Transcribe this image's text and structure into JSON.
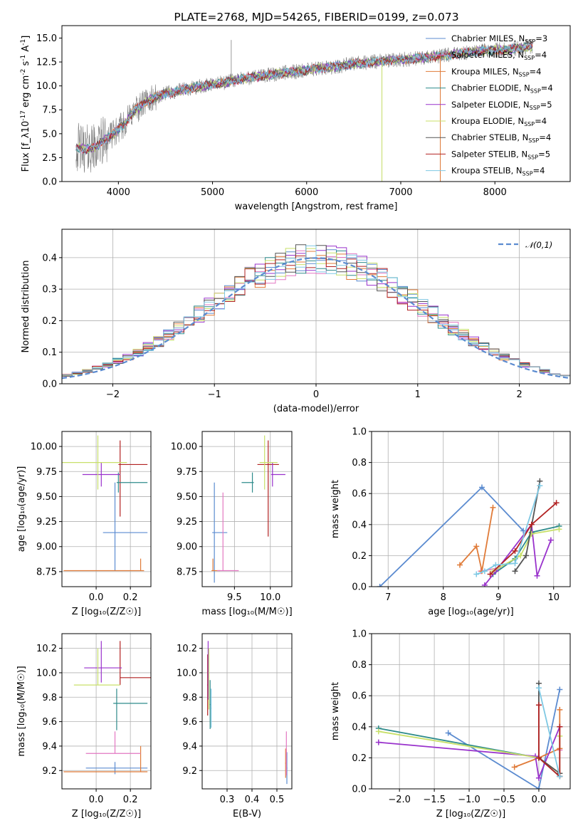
{
  "title": "PLATE=2768, MJD=54265, FIBERID=0199, z=0.073",
  "chart_data": [
    {
      "id": "spectrum",
      "type": "line",
      "title": "PLATE=2768, MJD=54265, FIBERID=0199, z=0.073",
      "xlabel": "wavelength [Angstrom, rest frame]",
      "ylabel": "Flux [f_λ10^{-17} erg cm^{-2} s^{-1} A^{-1}]",
      "xlim": [
        3400,
        8800
      ],
      "ylim": [
        0,
        16.3
      ],
      "xticks": [
        4000,
        5000,
        6000,
        7000,
        8000
      ],
      "yticks": [
        0.0,
        2.5,
        5.0,
        7.5,
        10.0,
        12.5,
        15.0
      ],
      "ytick_labels": [
        "0.0",
        "2.5",
        "5.0",
        "7.5",
        "10.0",
        "12.5",
        "15.0"
      ],
      "grid": false,
      "legend_position": "right",
      "data_color": "#808080",
      "continuum": {
        "x": [
          3550,
          3650,
          3750,
          3850,
          3950,
          4050,
          4150,
          4300,
          4500,
          4700,
          4900,
          5100,
          5300,
          5500,
          5700,
          5900,
          6100,
          6300,
          6500,
          6700,
          6900,
          7100,
          7300,
          7500,
          7700,
          7900,
          8100,
          8300,
          8400
        ],
        "y": [
          3.6,
          3.4,
          3.5,
          4.4,
          5.0,
          5.9,
          7.2,
          8.4,
          9.2,
          9.6,
          10.0,
          10.3,
          10.7,
          11.0,
          11.3,
          11.5,
          11.8,
          12.0,
          12.3,
          12.5,
          12.7,
          12.8,
          13.0,
          13.2,
          13.5,
          13.7,
          13.8,
          14.0,
          14.1
        ]
      },
      "spikes": [
        {
          "x": 5199,
          "y": 14.8
        },
        {
          "x": 6800,
          "y": 0.0
        },
        {
          "x": 7420,
          "y": 0.0
        }
      ]
    },
    {
      "id": "residuals",
      "type": "histogram",
      "xlabel": "(data-model)/error",
      "ylabel": "Normed distribution",
      "xlim": [
        -2.5,
        2.5
      ],
      "ylim": [
        0,
        0.49
      ],
      "xticks": [
        -2,
        -1,
        0,
        1,
        2
      ],
      "xtick_labels": [
        "−2",
        "−1",
        "0",
        "1",
        "2"
      ],
      "yticks": [
        0.0,
        0.1,
        0.2,
        0.3,
        0.4
      ],
      "ytick_labels": [
        "0.0",
        "0.1",
        "0.2",
        "0.3",
        "0.4"
      ],
      "grid": true,
      "bin_width": 0.1,
      "legend_position": "top-right",
      "reference_curve": {
        "label": "𝒩(0,1)",
        "mean": 0,
        "sigma": 1,
        "color": "#5b8bd0"
      }
    },
    {
      "id": "age_vs_Z",
      "type": "errorbar",
      "xlabel": "Z [log₁₀(Z/Z☉)]",
      "ylabel": "age  [log₁₀(age/yr)]",
      "xlim": [
        -0.2,
        0.32
      ],
      "ylim": [
        8.6,
        10.15
      ],
      "xticks": [
        0.0,
        0.2
      ],
      "xtick_labels": [
        "0.0",
        "0.2"
      ],
      "yticks": [
        8.75,
        9.0,
        9.25,
        9.5,
        9.75,
        10.0
      ],
      "ytick_labels": [
        "8.75",
        "9.00",
        "9.25",
        "9.50",
        "9.75",
        "10.00"
      ],
      "grid": true,
      "points": [
        {
          "x": 0.11,
          "xerr": [
            0.07,
            0.19
          ],
          "y": 9.14,
          "yerr": [
            0.38,
            0.5
          ],
          "color": "#5b8bd0"
        },
        {
          "x": 0.26,
          "xerr": [
            0.45,
            0.02
          ],
          "y": 8.76,
          "yerr": [
            0.0,
            0.12
          ],
          "color": "#e07b39"
        },
        {
          "x": 0.14,
          "xerr": [
            0.01,
            0.16
          ],
          "y": 9.82,
          "yerr": [
            0.52,
            0.24
          ],
          "color": "#b22222"
        },
        {
          "x": 0.13,
          "xerr": [
            0.01,
            0.17
          ],
          "y": 9.64,
          "yerr": [
            0.1,
            0.1
          ],
          "color": "#2e8b8b"
        },
        {
          "x": 0.03,
          "xerr": [
            0.11,
            0.11
          ],
          "y": 9.72,
          "yerr": [
            0.12,
            0.12
          ],
          "color": "#9932cc"
        },
        {
          "x": 0.01,
          "xerr": [
            0.25,
            0.17
          ],
          "y": 9.84,
          "yerr": [
            0.27,
            0.27
          ],
          "color": "#c8e06a"
        }
      ]
    },
    {
      "id": "age_vs_mass",
      "type": "errorbar",
      "xlabel": "mass [log₁₀(M/M☉)]",
      "ylabel": "",
      "xlim": [
        9.05,
        10.3
      ],
      "ylim": [
        8.6,
        10.15
      ],
      "xticks": [
        9.5,
        10.0
      ],
      "xtick_labels": [
        "9.5",
        "10.0"
      ],
      "yticks": [
        8.75,
        9.0,
        9.25,
        9.5,
        9.75,
        10.0
      ],
      "ytick_labels": [
        "8.75",
        "9.00",
        "9.25",
        "9.50",
        "9.75",
        "10.00"
      ],
      "grid": true,
      "points": [
        {
          "x": 9.22,
          "xerr": [
            0.03,
            0.18
          ],
          "y": 9.14,
          "yerr": [
            0.5,
            0.5
          ],
          "color": "#5b8bd0"
        },
        {
          "x": 9.2,
          "xerr": [
            0.02,
            0.1
          ],
          "y": 8.76,
          "yerr": [
            0.0,
            0.12
          ],
          "color": "#e07b39"
        },
        {
          "x": 9.34,
          "xerr": [
            0.08,
            0.22
          ],
          "y": 8.76,
          "yerr": [
            0.0,
            0.78
          ],
          "color": "#e377c2"
        },
        {
          "x": 9.97,
          "xerr": [
            0.15,
            0.15
          ],
          "y": 9.82,
          "yerr": [
            0.72,
            0.24
          ],
          "color": "#b22222"
        },
        {
          "x": 9.75,
          "xerr": [
            0.15,
            0.02
          ],
          "y": 9.64,
          "yerr": [
            0.1,
            0.1
          ],
          "color": "#2e8b8b"
        },
        {
          "x": 10.03,
          "xerr": [
            0.02,
            0.18
          ],
          "y": 9.72,
          "yerr": [
            0.12,
            0.12
          ],
          "color": "#9932cc"
        },
        {
          "x": 9.92,
          "xerr": [
            0.07,
            0.18
          ],
          "y": 9.84,
          "yerr": [
            0.27,
            0.27
          ],
          "color": "#c8e06a"
        }
      ]
    },
    {
      "id": "weight_vs_age",
      "type": "line",
      "xlabel": "age  [log₁₀(age/yr)]",
      "ylabel": "mass weight",
      "xlim": [
        6.7,
        10.3
      ],
      "ylim": [
        0,
        1
      ],
      "xticks": [
        7,
        8,
        9,
        10
      ],
      "xtick_labels": [
        "7",
        "8",
        "9",
        "10"
      ],
      "yticks": [
        0.0,
        0.2,
        0.4,
        0.6,
        0.8,
        1.0
      ],
      "ytick_labels": [
        "0.0",
        "0.2",
        "0.4",
        "0.6",
        "0.8",
        "1.0"
      ],
      "grid": true
    },
    {
      "id": "mass_vs_Z",
      "type": "errorbar",
      "xlabel": "Z [log₁₀(Z/Z☉)]",
      "ylabel": "mass [log₁₀(M/M☉)]",
      "xlim": [
        -0.2,
        0.32
      ],
      "ylim": [
        9.05,
        10.32
      ],
      "xticks": [
        0.0,
        0.2
      ],
      "xtick_labels": [
        "0.0",
        "0.2"
      ],
      "yticks": [
        9.2,
        9.4,
        9.6,
        9.8,
        10.0,
        10.2
      ],
      "ytick_labels": [
        "9.2",
        "9.4",
        "9.6",
        "9.8",
        "10.0",
        "10.2"
      ],
      "grid": true,
      "points": [
        {
          "x": 0.11,
          "xerr": [
            0.17,
            0.19
          ],
          "y": 9.22,
          "yerr": [
            0.05,
            0.05
          ],
          "color": "#5b8bd0"
        },
        {
          "x": 0.26,
          "xerr": [
            0.45,
            0.04
          ],
          "y": 9.19,
          "yerr": [
            0.0,
            0.21
          ],
          "color": "#e07b39"
        },
        {
          "x": 0.11,
          "xerr": [
            0.17,
            0.15
          ],
          "y": 9.34,
          "yerr": [
            0.0,
            0.18
          ],
          "color": "#e377c2"
        },
        {
          "x": 0.14,
          "xerr": [
            0.0,
            0.18
          ],
          "y": 9.96,
          "yerr": [
            0.06,
            0.3
          ],
          "color": "#b22222"
        },
        {
          "x": 0.12,
          "xerr": [
            0.02,
            0.18
          ],
          "y": 9.75,
          "yerr": [
            0.22,
            0.12
          ],
          "color": "#2e8b8b"
        },
        {
          "x": 0.03,
          "xerr": [
            0.1,
            0.12
          ],
          "y": 10.04,
          "yerr": [
            0.12,
            0.22
          ],
          "color": "#9932cc"
        },
        {
          "x": 0.01,
          "xerr": [
            0.14,
            0.13
          ],
          "y": 9.9,
          "yerr": [
            0.0,
            0.3
          ],
          "color": "#c8e06a"
        }
      ]
    },
    {
      "id": "mass_vs_EBV",
      "type": "errorbar",
      "xlabel": "E(B-V)",
      "ylabel": "",
      "xlim": [
        0.2,
        0.56
      ],
      "ylim": [
        9.05,
        10.32
      ],
      "xticks": [
        0.3,
        0.4,
        0.5
      ],
      "xtick_labels": [
        "0.3",
        "0.4",
        "0.5"
      ],
      "yticks": [
        9.2,
        9.4,
        9.6,
        9.8,
        10.0,
        10.2
      ],
      "ytick_labels": [
        "9.2",
        "9.4",
        "9.6",
        "9.8",
        "10.0",
        "10.2"
      ],
      "grid": true,
      "points": [
        {
          "x": 0.54,
          "xerr": [
            0.002,
            0.002
          ],
          "y": 9.22,
          "yerr": [
            0.13,
            0.13
          ],
          "color": "#5b8bd0"
        },
        {
          "x": 0.535,
          "xerr": [
            0.002,
            0.002
          ],
          "y": 9.26,
          "yerr": [
            0.12,
            0.12
          ],
          "color": "#e07b39"
        },
        {
          "x": 0.538,
          "xerr": [
            0.002,
            0.002
          ],
          "y": 9.34,
          "yerr": [
            0.18,
            0.18
          ],
          "color": "#e377c2"
        },
        {
          "x": 0.222,
          "xerr": [
            0.002,
            0.002
          ],
          "y": 9.9,
          "yerr": [
            0.25,
            0.25
          ],
          "color": "#b22222"
        },
        {
          "x": 0.232,
          "xerr": [
            0.002,
            0.002
          ],
          "y": 9.74,
          "yerr": [
            0.2,
            0.2
          ],
          "color": "#2e8b8b"
        },
        {
          "x": 0.224,
          "xerr": [
            0.002,
            0.002
          ],
          "y": 10.02,
          "yerr": [
            0.24,
            0.24
          ],
          "color": "#9932cc"
        },
        {
          "x": 0.227,
          "xerr": [
            0.002,
            0.002
          ],
          "y": 9.95,
          "yerr": [
            0.25,
            0.25
          ],
          "color": "#c8e06a"
        },
        {
          "x": 0.236,
          "xerr": [
            0.002,
            0.002
          ],
          "y": 9.71,
          "yerr": [
            0.16,
            0.16
          ],
          "color": "#7ec8e3"
        }
      ]
    },
    {
      "id": "weight_vs_Z",
      "type": "line",
      "xlabel": "Z [log₁₀(Z/Z☉)]",
      "ylabel": "mass weight",
      "xlim": [
        -2.4,
        0.45
      ],
      "ylim": [
        0,
        1
      ],
      "xticks": [
        -2.0,
        -1.5,
        -1.0,
        -0.5,
        0.0
      ],
      "xtick_labels": [
        "−2.0",
        "−1.5",
        "−1.0",
        "−0.5",
        "0.0"
      ],
      "yticks": [
        0.0,
        0.2,
        0.4,
        0.6,
        0.8,
        1.0
      ],
      "ytick_labels": [
        "0.0",
        "0.2",
        "0.4",
        "0.6",
        "0.8",
        "1.0"
      ],
      "grid": true
    }
  ],
  "models": [
    {
      "label": "Chabrier MILES, N_SSP=3",
      "name": "Chabrier MILES",
      "sub": "SSP",
      "n": "=3",
      "color": "#5b8bd0",
      "age_points": [
        [
          6.85,
          0.0
        ],
        [
          8.7,
          0.64
        ],
        [
          9.45,
          0.36
        ]
      ],
      "Z_points": [
        [
          -1.3,
          0.36
        ],
        [
          0.0,
          0.0
        ],
        [
          0.3,
          0.64
        ]
      ],
      "hist_seed": 1
    },
    {
      "label": "Salpeter MILES, N_SSP=4",
      "name": "Salpeter MILES",
      "sub": "SSP",
      "n": "=4",
      "color": "#e377c2",
      "age_points": [
        [
          8.68,
          0.1
        ],
        [
          9.0,
          0.12
        ]
      ],
      "Z_points": [
        [
          0.3,
          0.1
        ],
        [
          0.3,
          0.25
        ]
      ],
      "hist_seed": 2
    },
    {
      "label": "Kroupa MILES, N_SSP=4",
      "name": "Kroupa MILES",
      "sub": "SSP",
      "n": "=4",
      "color": "#e07b39",
      "age_points": [
        [
          8.3,
          0.14
        ],
        [
          8.6,
          0.26
        ],
        [
          8.7,
          0.1
        ],
        [
          8.9,
          0.51
        ]
      ],
      "Z_points": [
        [
          -0.35,
          0.14
        ],
        [
          0.0,
          0.2
        ],
        [
          0.3,
          0.26
        ],
        [
          0.3,
          0.51
        ]
      ],
      "hist_seed": 3
    },
    {
      "label": "Chabrier ELODIE, N_SSP=4",
      "name": "Chabrier ELODIE",
      "sub": "SSP",
      "n": "=4",
      "color": "#2e8b8b",
      "age_points": [
        [
          8.9,
          0.08
        ],
        [
          9.3,
          0.18
        ],
        [
          9.6,
          0.35
        ],
        [
          10.1,
          0.39
        ]
      ],
      "Z_points": [
        [
          -2.3,
          0.39
        ],
        [
          0.0,
          0.2
        ],
        [
          0.3,
          0.08
        ]
      ],
      "hist_seed": 4
    },
    {
      "label": "Salpeter ELODIE, N_SSP=5",
      "name": "Salpeter ELODIE",
      "sub": "SSP",
      "n": "=5",
      "color": "#9932cc",
      "age_points": [
        [
          8.75,
          0.01
        ],
        [
          8.95,
          0.1
        ],
        [
          9.6,
          0.4
        ],
        [
          9.7,
          0.07
        ],
        [
          9.95,
          0.3
        ]
      ],
      "Z_points": [
        [
          -2.3,
          0.3
        ],
        [
          -0.05,
          0.21
        ],
        [
          0.0,
          0.07
        ],
        [
          0.3,
          0.4
        ]
      ],
      "hist_seed": 5
    },
    {
      "label": "Kroupa ELODIE, N_SSP=4",
      "name": "Kroupa ELODIE",
      "sub": "SSP",
      "n": "=4",
      "color": "#c8e06a",
      "age_points": [
        [
          8.9,
          0.1
        ],
        [
          9.4,
          0.2
        ],
        [
          9.6,
          0.34
        ],
        [
          10.1,
          0.37
        ]
      ],
      "Z_points": [
        [
          -2.3,
          0.37
        ],
        [
          0.0,
          0.2
        ],
        [
          0.3,
          0.1
        ],
        [
          0.3,
          0.34
        ]
      ],
      "hist_seed": 6
    },
    {
      "label": "Chabrier STELIB, N_SSP=4",
      "name": "Chabrier STELIB",
      "sub": "SSP",
      "n": "=4",
      "color": "#555555",
      "age_points": [
        [
          9.3,
          0.1
        ],
        [
          9.5,
          0.2
        ],
        [
          9.75,
          0.68
        ]
      ],
      "Z_points": [
        [
          0.0,
          0.68
        ],
        [
          0.0,
          0.2
        ],
        [
          0.3,
          0.1
        ]
      ],
      "hist_seed": 7
    },
    {
      "label": "Salpeter STELIB, N_SSP=5",
      "name": "Salpeter STELIB",
      "sub": "SSP",
      "n": "=5",
      "color": "#b22222",
      "age_points": [
        [
          8.85,
          0.08
        ],
        [
          9.3,
          0.23
        ],
        [
          9.6,
          0.4
        ],
        [
          10.05,
          0.54
        ]
      ],
      "Z_points": [
        [
          0.0,
          0.54
        ],
        [
          0.0,
          0.2
        ],
        [
          0.3,
          0.08
        ],
        [
          0.3,
          0.4
        ]
      ],
      "hist_seed": 8
    },
    {
      "label": "Kroupa STELIB, N_SSP=4",
      "name": "Kroupa STELIB",
      "sub": "SSP",
      "n": "=4",
      "color": "#7ec8e3",
      "age_points": [
        [
          8.6,
          0.08
        ],
        [
          8.75,
          0.1
        ],
        [
          8.95,
          0.14
        ],
        [
          9.3,
          0.15
        ],
        [
          9.75,
          0.65
        ]
      ],
      "Z_points": [
        [
          0.0,
          0.65
        ],
        [
          0.3,
          0.08
        ]
      ],
      "hist_seed": 9
    }
  ]
}
